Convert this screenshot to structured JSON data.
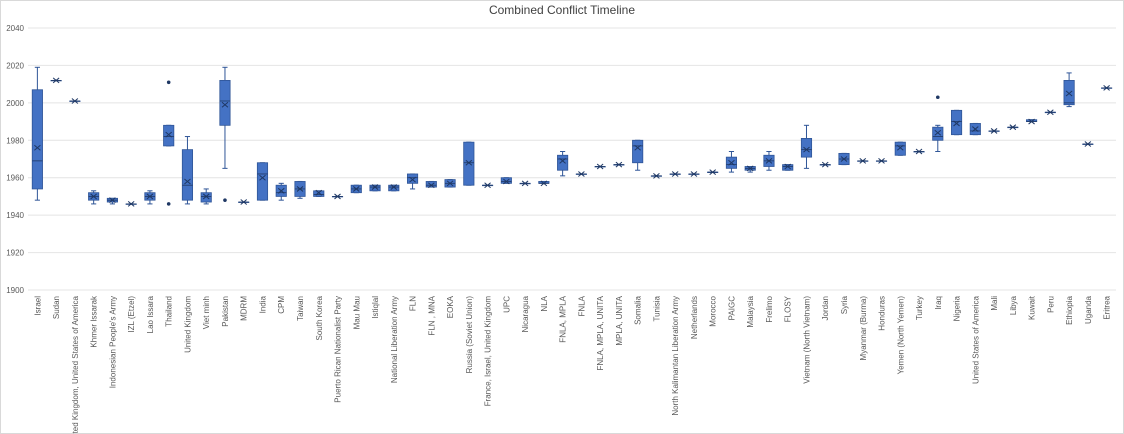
{
  "chart_data": {
    "type": "box",
    "title": "Combined Conflict Timeline",
    "categories": [
      "Israel",
      "Sudan",
      "United Kingdom, United States of America",
      "Khmer Issarak",
      "Indonesian People's Army",
      "IZL (Etzel)",
      "Lao Issara",
      "Thailand",
      "United Kingdom",
      "Viet minh",
      "Pakistan",
      "MDRM",
      "India",
      "CPM",
      "Taiwan",
      "South Korea",
      "Puerto Rican Nationalist Party",
      "Mau Mau",
      "Istiqlal",
      "National Liberation Army",
      "FLN",
      "FLN , MNA",
      "EOKA",
      "Russia (Soviet Union)",
      "France, Israel, United Kingdom",
      "UPC",
      "Nicaragua",
      "NLA",
      "FNLA, MPLA",
      "FNLA",
      "FNLA, MPLA, UNITA",
      "MPLA, UNITA",
      "Somalia",
      "Tunisia",
      "North Kalimantan Liberation Army",
      "Netherlands",
      "Morocco",
      "PAIGC",
      "Malaysia",
      "Frelimo",
      "FLOSY",
      "Vietnam (North Vietnam)",
      "Jordan",
      "Syria",
      "Myanmar (Burma)",
      "Honduras",
      "Yemen (North Yemen)",
      "Turkey",
      "Iraq",
      "Nigeria",
      "United States of America",
      "Mali",
      "Libya",
      "Kuwait",
      "Peru",
      "Ethiopia",
      "Uganda",
      "Eritrea"
    ],
    "min": [
      1948,
      2012,
      2001,
      1946,
      1946,
      1946,
      1946,
      1977,
      1946,
      1946,
      1965,
      1947,
      1948,
      1948,
      1949,
      1950,
      1950,
      1952,
      1953,
      1953,
      1954,
      1955,
      1955,
      1956,
      1956,
      1957,
      1957,
      1957,
      1961,
      1962,
      1966,
      1967,
      1964,
      1961,
      1962,
      1962,
      1963,
      1963,
      1963,
      1964,
      1964,
      1965,
      1967,
      1967,
      1969,
      1969,
      1972,
      1974,
      1974,
      1983,
      1983,
      1985,
      1987,
      1990,
      1995,
      1998,
      1978,
      2008
    ],
    "q1": [
      1954,
      2012,
      2001,
      1948,
      1947,
      1946,
      1948,
      1977,
      1948,
      1947,
      1988,
      1947,
      1948,
      1950,
      1950,
      1950,
      1950,
      1952,
      1953,
      1953,
      1957,
      1955,
      1955,
      1956,
      1956,
      1957,
      1957,
      1957,
      1964,
      1962,
      1966,
      1967,
      1968,
      1961,
      1962,
      1962,
      1963,
      1965,
      1964,
      1966,
      1964,
      1971,
      1967,
      1967,
      1969,
      1969,
      1972,
      1974,
      1980,
      1983,
      1983,
      1985,
      1987,
      1990,
      1995,
      1999,
      1978,
      2008
    ],
    "median": [
      1969,
      2012,
      2001,
      1950,
      1948,
      1946,
      1950,
      1982,
      1956,
      1950,
      2001,
      1947,
      1962,
      1952,
      1954,
      1951,
      1950,
      1954,
      1955,
      1955,
      1960,
      1956,
      1957,
      1968,
      1956,
      1958,
      1957,
      1957,
      1970,
      1962,
      1966,
      1967,
      1977,
      1961,
      1962,
      1962,
      1963,
      1967,
      1965,
      1969,
      1966,
      1975,
      1967,
      1970,
      1969,
      1969,
      1977,
      1974,
      1982,
      1990,
      1985,
      1985,
      1987,
      1990,
      1995,
      2000,
      1978,
      2008
    ],
    "q3": [
      2007,
      2012,
      2001,
      1952,
      1949,
      1946,
      1952,
      1988,
      1975,
      1952,
      2012,
      1947,
      1968,
      1956,
      1958,
      1953,
      1950,
      1956,
      1956,
      1956,
      1962,
      1958,
      1959,
      1979,
      1956,
      1960,
      1957,
      1958,
      1972,
      1962,
      1966,
      1967,
      1980,
      1961,
      1962,
      1962,
      1963,
      1971,
      1966,
      1972,
      1967,
      1981,
      1967,
      1973,
      1969,
      1969,
      1979,
      1974,
      1987,
      1996,
      1989,
      1985,
      1987,
      1991,
      1995,
      2012,
      1978,
      2008
    ],
    "max": [
      2019,
      2012,
      2001,
      1953,
      1949,
      1946,
      1953,
      1988,
      1982,
      1954,
      2019,
      1947,
      1968,
      1957,
      1958,
      1953,
      1950,
      1956,
      1956,
      1956,
      1962,
      1958,
      1959,
      1979,
      1956,
      1960,
      1957,
      1958,
      1974,
      1962,
      1966,
      1967,
      1980,
      1961,
      1962,
      1962,
      1963,
      1974,
      1966,
      1974,
      1967,
      1988,
      1967,
      1973,
      1969,
      1969,
      1979,
      1974,
      1988,
      1996,
      1989,
      1985,
      1987,
      1991,
      1995,
      2016,
      1978,
      2008
    ],
    "mean": [
      1976,
      2012,
      2001,
      1950,
      1948,
      1946,
      1950,
      1983,
      1958,
      1950,
      1999,
      1947,
      1960,
      1953,
      1954,
      1952,
      1950,
      1954,
      1955,
      1955,
      1959,
      1956,
      1957,
      1968,
      1956,
      1958,
      1957,
      1957,
      1969,
      1962,
      1966,
      1967,
      1976,
      1961,
      1962,
      1962,
      1963,
      1968,
      1965,
      1969,
      1966,
      1975,
      1967,
      1970,
      1969,
      1969,
      1976,
      1974,
      1984,
      1989,
      1986,
      1985,
      1987,
      1990,
      1995,
      2005,
      1978,
      2008
    ],
    "outliers": [
      [],
      [],
      [],
      [],
      [],
      [],
      [],
      [
        2011,
        1946
      ],
      [],
      [],
      [
        1948
      ],
      [],
      [],
      [],
      [],
      [],
      [],
      [],
      [],
      [],
      [],
      [],
      [],
      [],
      [],
      [],
      [],
      [],
      [],
      [],
      [],
      [],
      [],
      [],
      [],
      [],
      [],
      [],
      [],
      [],
      [],
      [],
      [],
      [],
      [],
      [],
      [],
      [],
      [
        2003
      ],
      [],
      [],
      [],
      [],
      [],
      [],
      [],
      [],
      []
    ],
    "color": "#4472c4",
    "ylim": [
      1900,
      2040
    ],
    "yticks": [
      1900,
      1920,
      1940,
      1960,
      1980,
      2000,
      2020,
      2040
    ],
    "grid": true
  }
}
